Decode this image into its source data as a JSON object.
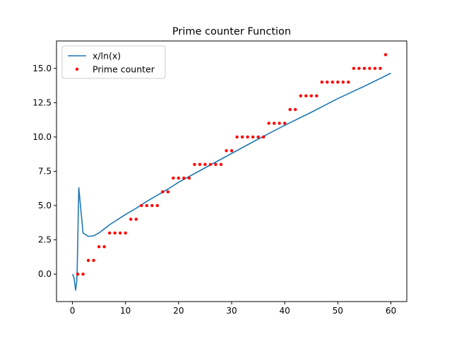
{
  "chart_data": {
    "type": "line",
    "title": "Prime counter Function",
    "xlabel": "",
    "ylabel": "",
    "xlim": [
      -3.0,
      63.0
    ],
    "ylim": [
      -2.0,
      17.0
    ],
    "xticks": [
      0,
      10,
      20,
      30,
      40,
      50,
      60
    ],
    "yticks": [
      0.0,
      2.5,
      5.0,
      7.5,
      10.0,
      12.5,
      15.0
    ],
    "xtick_labels": [
      "0",
      "10",
      "20",
      "30",
      "40",
      "50",
      "60"
    ],
    "ytick_labels": [
      "0.0",
      "2.5",
      "5.0",
      "7.5",
      "10.0",
      "12.5",
      "15.0"
    ],
    "grid": false,
    "legend_position": "upper-left",
    "series": [
      {
        "name": "x/ln(x)",
        "kind": "line",
        "color": "#1f77b4",
        "x": [
          0,
          0.3,
          0.6,
          0.8,
          0.9,
          1.2,
          2,
          3,
          4,
          5,
          6,
          7,
          8,
          9,
          10,
          12,
          14,
          16,
          18,
          20,
          25,
          30,
          35,
          40,
          45,
          50,
          55,
          60
        ],
        "y": [
          0,
          -0.25,
          -1.17,
          -0.6,
          0.4,
          6.3,
          3.0,
          2.75,
          2.8,
          3.0,
          3.3,
          3.6,
          3.85,
          4.1,
          4.35,
          4.8,
          5.3,
          5.75,
          6.2,
          6.7,
          7.75,
          8.8,
          9.85,
          10.85,
          11.8,
          12.8,
          13.7,
          14.65
        ]
      },
      {
        "name": "Prime counter",
        "kind": "scatter",
        "color": "#ff0000",
        "x": [
          1,
          2,
          3,
          4,
          5,
          6,
          7,
          8,
          9,
          10,
          11,
          12,
          13,
          14,
          15,
          16,
          17,
          18,
          19,
          20,
          21,
          22,
          23,
          24,
          25,
          26,
          27,
          28,
          29,
          30,
          31,
          32,
          33,
          34,
          35,
          36,
          37,
          38,
          39,
          40,
          41,
          42,
          43,
          44,
          45,
          46,
          47,
          48,
          49,
          50,
          51,
          52,
          53,
          54,
          55,
          56,
          57,
          58,
          59
        ],
        "y": [
          0,
          0,
          1,
          1,
          2,
          2,
          3,
          3,
          3,
          3,
          4,
          4,
          5,
          5,
          5,
          5,
          6,
          6,
          7,
          7,
          7,
          7,
          8,
          8,
          8,
          8,
          8,
          8,
          9,
          9,
          10,
          10,
          10,
          10,
          10,
          10,
          11,
          11,
          11,
          11,
          12,
          12,
          13,
          13,
          13,
          13,
          14,
          14,
          14,
          14,
          14,
          14,
          15,
          15,
          15,
          15,
          15,
          15,
          16
        ]
      }
    ]
  }
}
